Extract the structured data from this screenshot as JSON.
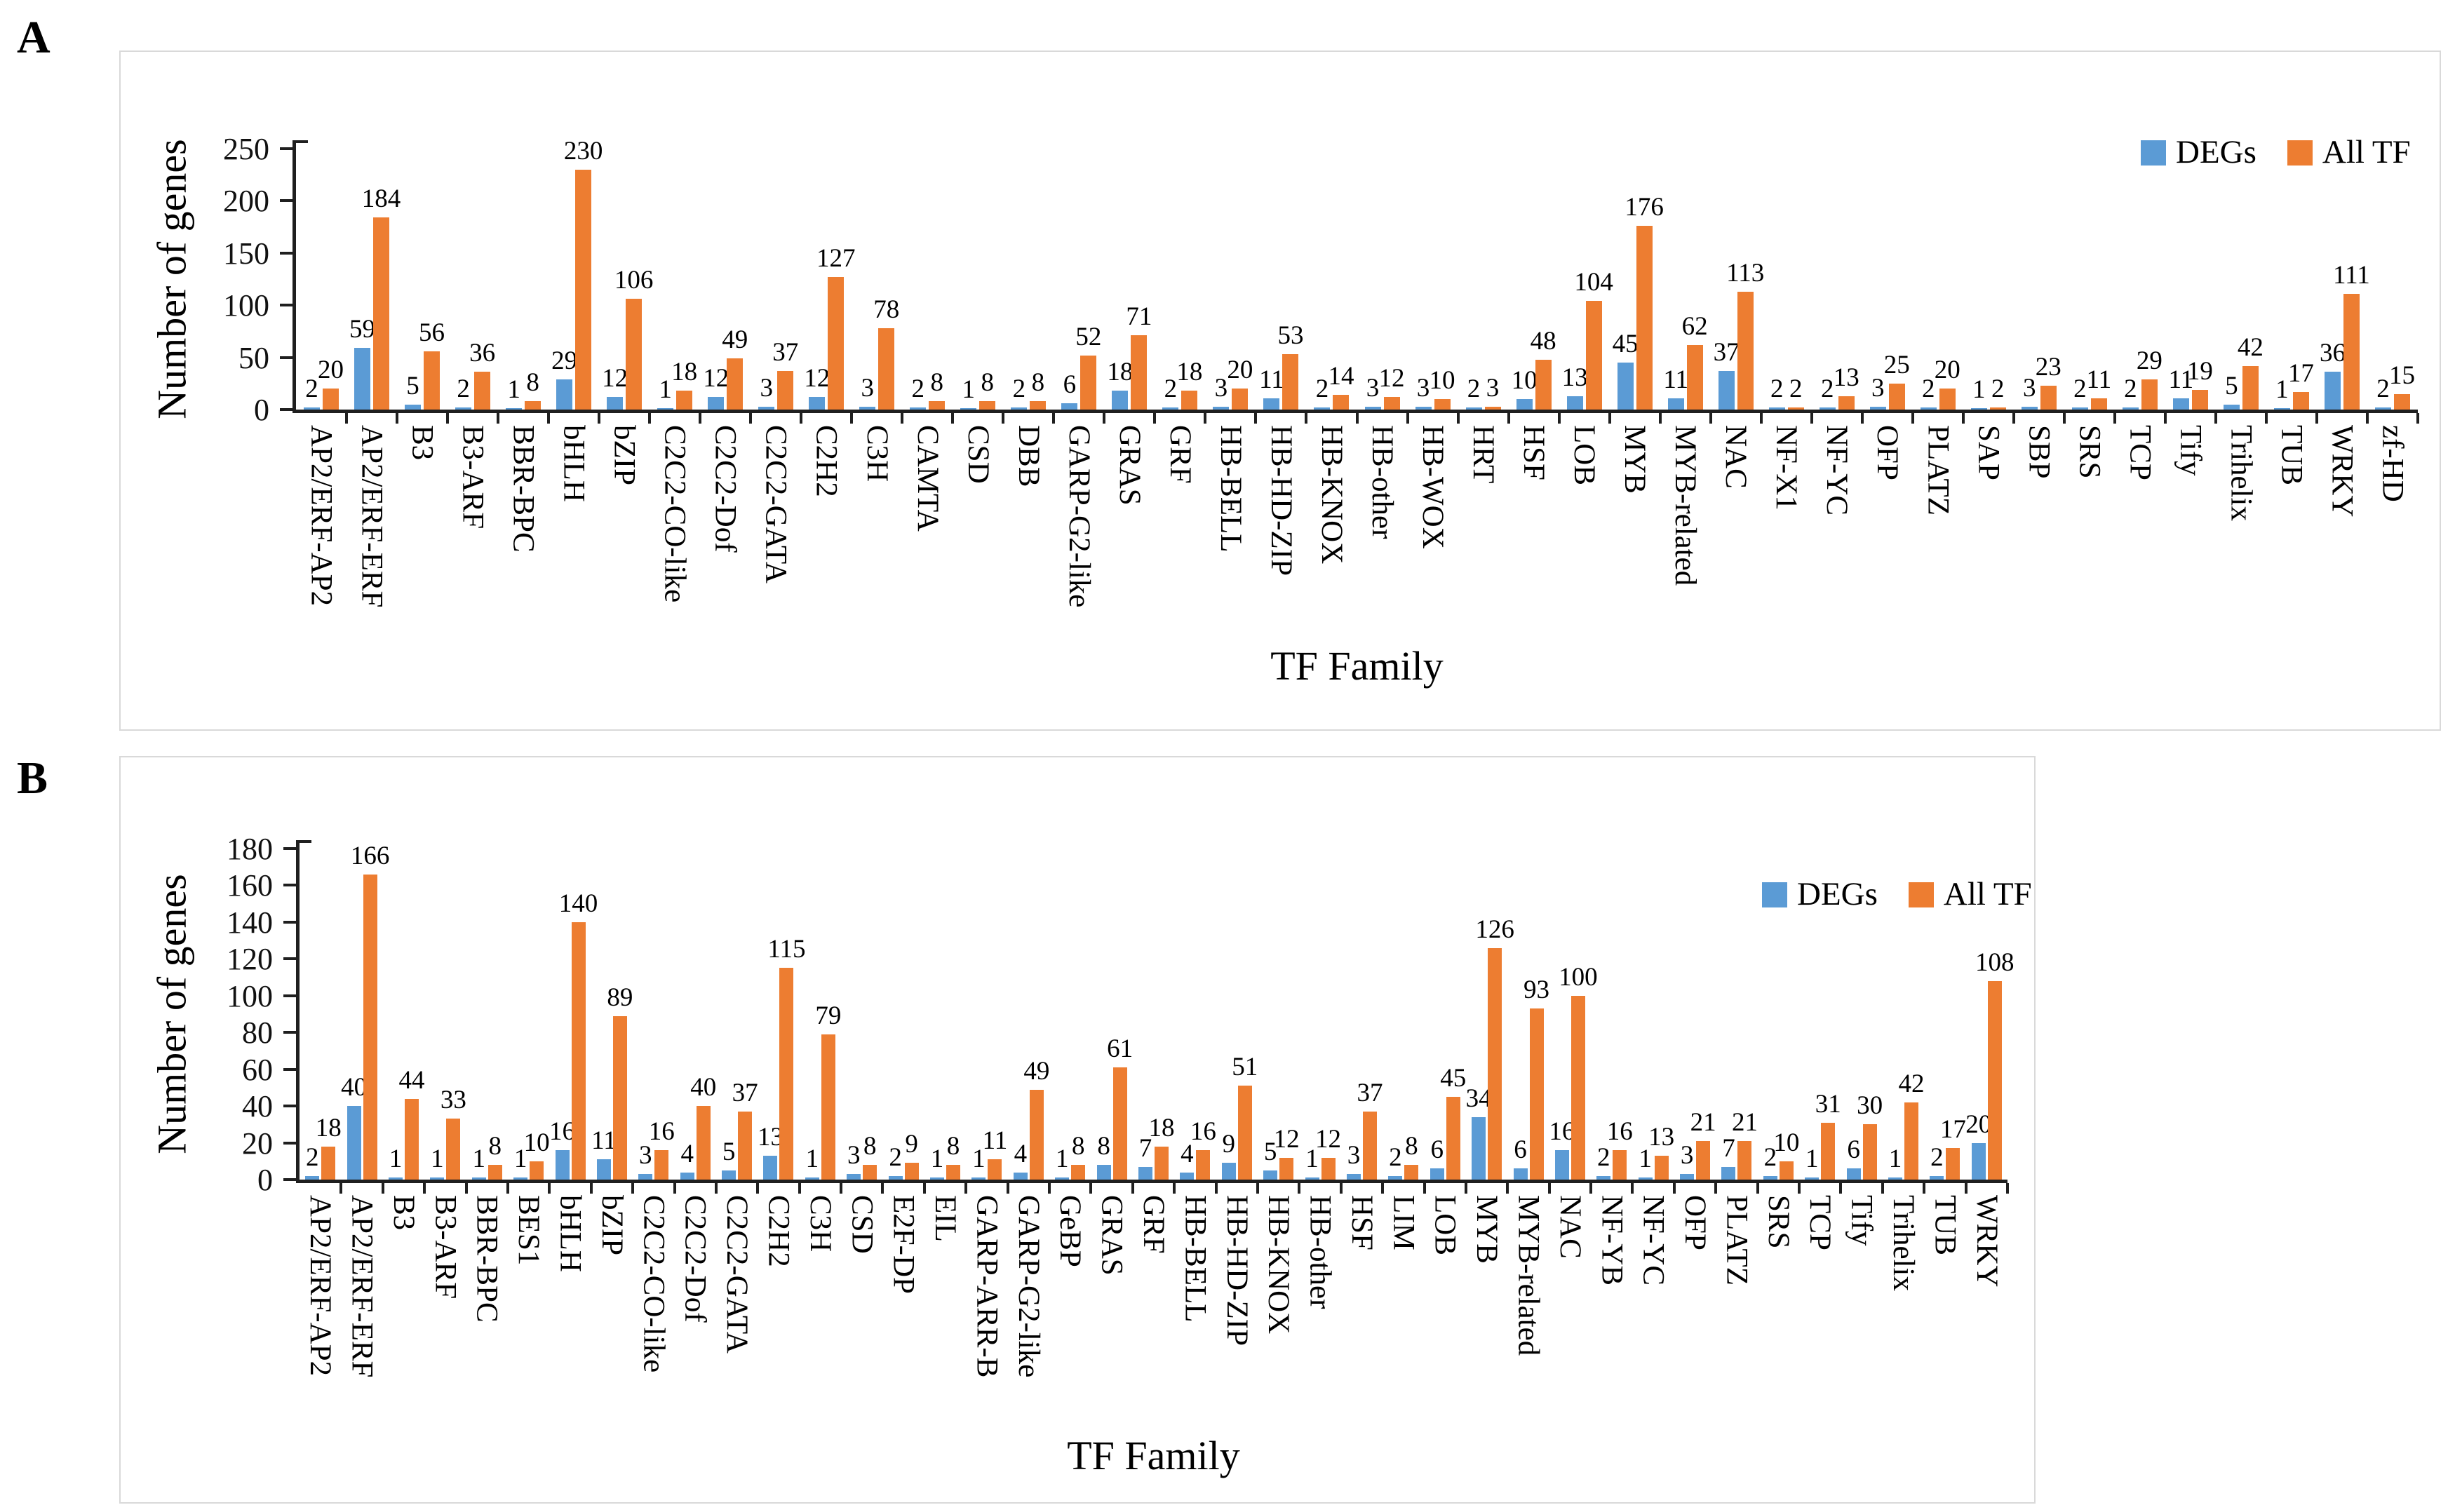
{
  "figure": {
    "panels": [
      {
        "label": "A"
      },
      {
        "label": "B"
      }
    ],
    "colors": {
      "degs": "#5B9BD5",
      "all_tf": "#ED7D31",
      "axis": "#1F1F1F",
      "panel_border": "#D9D9D9"
    }
  },
  "chart_data": [
    {
      "type": "bar",
      "panel": "A",
      "title": "",
      "xlabel": "TF Family",
      "ylabel": "Number of genes",
      "ylim": [
        0,
        250
      ],
      "ytick_step": 50,
      "grid": false,
      "bar_labels": true,
      "legend_position": "top-right-inside",
      "categories": [
        "AP2/ERF-AP2",
        "AP2/ERF-ERF",
        "B3",
        "B3-ARF",
        "BBR-BPC",
        "bHLH",
        "bZIP",
        "C2C2-CO-like",
        "C2C2-Dof",
        "C2C2-GATA",
        "C2H2",
        "C3H",
        "CAMTA",
        "CSD",
        "DBB",
        "GARP-G2-like",
        "GRAS",
        "GRF",
        "HB-BELL",
        "HB-HD-ZIP",
        "HB-KNOX",
        "HB-other",
        "HB-WOX",
        "HRT",
        "HSF",
        "LOB",
        "MYB",
        "MYB-related",
        "NAC",
        "NF-X1",
        "NF-YC",
        "OFP",
        "PLATZ",
        "SAP",
        "SBP",
        "SRS",
        "TCP",
        "Tify",
        "Trihelix",
        "TUB",
        "WRKY",
        "zf-HD"
      ],
      "series": [
        {
          "name": "DEGs",
          "color": "#5B9BD5",
          "values": [
            2,
            59,
            5,
            2,
            1,
            29,
            12,
            1,
            12,
            3,
            12,
            3,
            2,
            1,
            2,
            6,
            18,
            2,
            3,
            11,
            2,
            3,
            3,
            2,
            10,
            13,
            45,
            11,
            37,
            2,
            2,
            3,
            2,
            1,
            3,
            2,
            2,
            11,
            5,
            1,
            36,
            2
          ]
        },
        {
          "name": "All TF",
          "color": "#ED7D31",
          "values": [
            20,
            184,
            56,
            36,
            8,
            230,
            106,
            18,
            49,
            37,
            127,
            78,
            8,
            8,
            8,
            52,
            71,
            18,
            20,
            53,
            14,
            12,
            10,
            3,
            48,
            104,
            176,
            62,
            113,
            2,
            13,
            25,
            20,
            2,
            23,
            11,
            29,
            19,
            42,
            17,
            111,
            15
          ]
        }
      ]
    },
    {
      "type": "bar",
      "panel": "B",
      "title": "",
      "xlabel": "TF Family",
      "ylabel": "Number of genes",
      "ylim": [
        0,
        180
      ],
      "ytick_step": 20,
      "grid": false,
      "bar_labels": true,
      "legend_position": "top-right-inside",
      "categories": [
        "AP2/ERF-AP2",
        "AP2/ERF-ERF",
        "B3",
        "B3-ARF",
        "BBR-BPC",
        "BES1",
        "bHLH",
        "bZIP",
        "C2C2-CO-like",
        "C2C2-Dof",
        "C2C2-GATA",
        "C2H2",
        "C3H",
        "CSD",
        "E2F-DP",
        "EIL",
        "GARP-ARR-B",
        "GARP-G2-like",
        "GeBP",
        "GRAS",
        "GRF",
        "HB-BELL",
        "HB-HD-ZIP",
        "HB-KNOX",
        "HB-other",
        "HSF",
        "LIM",
        "LOB",
        "MYB",
        "MYB-related",
        "NAC",
        "NF-YB",
        "NF-YC",
        "OFP",
        "PLATZ",
        "SRS",
        "TCP",
        "Tify",
        "Trihelix",
        "TUB",
        "WRKY"
      ],
      "series": [
        {
          "name": "DEGs",
          "color": "#5B9BD5",
          "values": [
            2,
            40,
            1,
            1,
            1,
            1,
            16,
            11,
            3,
            4,
            5,
            13,
            1,
            3,
            2,
            1,
            1,
            4,
            1,
            8,
            7,
            4,
            9,
            5,
            1,
            3,
            2,
            6,
            34,
            6,
            16,
            2,
            1,
            3,
            7,
            2,
            1,
            6,
            1,
            2,
            20
          ]
        },
        {
          "name": "All TF",
          "color": "#ED7D31",
          "values": [
            18,
            166,
            44,
            33,
            8,
            10,
            140,
            89,
            16,
            40,
            37,
            115,
            79,
            8,
            9,
            8,
            11,
            49,
            8,
            61,
            18,
            16,
            51,
            12,
            12,
            37,
            8,
            45,
            126,
            93,
            100,
            16,
            13,
            21,
            21,
            10,
            31,
            30,
            42,
            17,
            108
          ]
        }
      ]
    }
  ]
}
